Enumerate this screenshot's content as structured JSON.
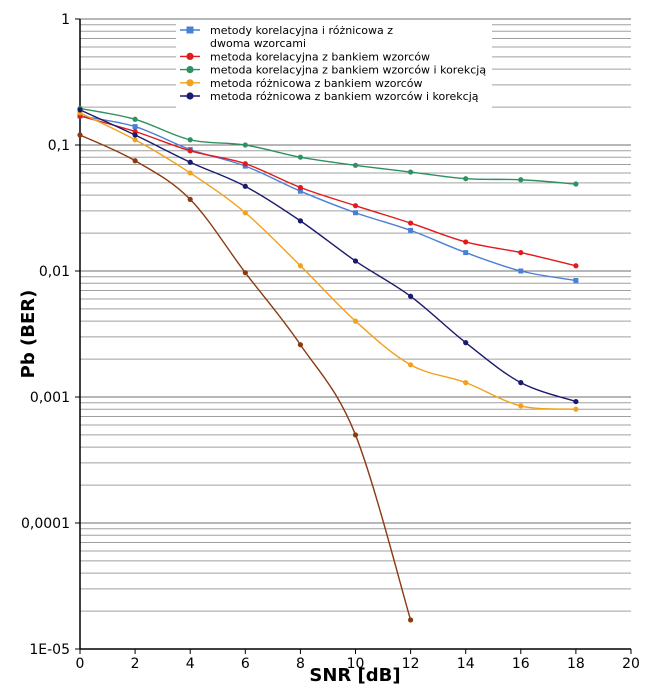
{
  "chart_data": {
    "type": "line",
    "title": "",
    "xlabel": "SNR [dB]",
    "ylabel": "Pb (BER)",
    "xlim": [
      0,
      20
    ],
    "ylim": [
      1e-05,
      1
    ],
    "yscale": "log",
    "grid": true,
    "legend_position": "top-right",
    "x_ticks": [
      "0",
      "2",
      "4",
      "6",
      "8",
      "10",
      "12",
      "14",
      "16",
      "18",
      "20"
    ],
    "y_ticks": [
      "1",
      "0,1",
      "0,01",
      "0,001",
      "0,0001",
      "1E-05"
    ],
    "series": [
      {
        "name": "metody korelacyjna i różnicowa z dwoma wzorcami",
        "color": "#4a7fd6",
        "marker": "square",
        "x": [
          0,
          2,
          4,
          6,
          8,
          10,
          12,
          14,
          16,
          18
        ],
        "y": [
          0.17,
          0.14,
          0.092,
          0.068,
          0.043,
          0.029,
          0.021,
          0.014,
          0.01,
          0.0084
        ]
      },
      {
        "name": "metoda korelacyjna z bankiem wzorców",
        "color": "#e3191c",
        "marker": "circle",
        "x": [
          0,
          2,
          4,
          6,
          8,
          10,
          12,
          14,
          16,
          18
        ],
        "y": [
          0.17,
          0.128,
          0.09,
          0.071,
          0.046,
          0.033,
          0.024,
          0.017,
          0.014,
          0.011
        ]
      },
      {
        "name": "metoda korelacyjna z bankiem wzorców i korekcją",
        "color": "#2f9060",
        "marker": "circle",
        "x": [
          0,
          2,
          4,
          6,
          8,
          10,
          12,
          14,
          16,
          18
        ],
        "y": [
          0.195,
          0.16,
          0.11,
          0.1,
          0.08,
          0.069,
          0.061,
          0.054,
          0.053,
          0.049
        ]
      },
      {
        "name": "metoda różnicowa z bankiem wzorców",
        "color": "#f2a11c",
        "marker": "circle",
        "x": [
          0,
          2,
          4,
          6,
          8,
          10,
          12,
          14,
          16,
          18
        ],
        "y": [
          0.18,
          0.11,
          0.06,
          0.029,
          0.011,
          0.004,
          0.0018,
          0.0013,
          0.00085,
          0.0008
        ]
      },
      {
        "name": "metoda różnicowa z bankiem wzorców i korekcją",
        "color": "#1a1a6e",
        "marker": "circle",
        "x": [
          0,
          2,
          4,
          6,
          8,
          10,
          12,
          14,
          16,
          18
        ],
        "y": [
          0.19,
          0.12,
          0.073,
          0.047,
          0.025,
          0.012,
          0.0063,
          0.0027,
          0.0013,
          0.00092
        ]
      },
      {
        "color": "#8b3a10",
        "marker": "circle",
        "x": [
          0,
          2,
          4,
          6,
          8,
          10,
          12
        ],
        "y": [
          0.12,
          0.075,
          0.037,
          0.0097,
          0.0026,
          0.0005,
          1.7e-05
        ]
      }
    ]
  }
}
